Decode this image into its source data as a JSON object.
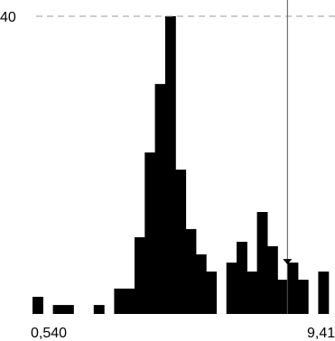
{
  "chart_data": {
    "type": "bar",
    "title": "",
    "xlabel": "",
    "ylabel": "",
    "ylim": [
      0,
      40
    ],
    "xlim": [
      0.54,
      9.41
    ],
    "grid": false,
    "reference_line": {
      "y": 40,
      "label": "40",
      "style": "dashed"
    },
    "cursor_line": {
      "x": 8.41
    },
    "x_tick_labels": [
      "0,540",
      "9,41"
    ],
    "bins": [
      {
        "x0": 0.54,
        "x1": 0.855,
        "value": 2.3
      },
      {
        "x0": 0.855,
        "x1": 1.17,
        "value": 0
      },
      {
        "x0": 1.17,
        "x1": 1.485,
        "value": 1.2
      },
      {
        "x0": 1.485,
        "x1": 1.8,
        "value": 1.2
      },
      {
        "x0": 1.8,
        "x1": 2.115,
        "value": 0
      },
      {
        "x0": 2.115,
        "x1": 2.43,
        "value": 0
      },
      {
        "x0": 2.43,
        "x1": 2.745,
        "value": 1.2
      },
      {
        "x0": 2.745,
        "x1": 3.06,
        "value": 0
      },
      {
        "x0": 3.06,
        "x1": 3.375,
        "value": 3.4
      },
      {
        "x0": 3.375,
        "x1": 3.69,
        "value": 3.4
      },
      {
        "x0": 3.69,
        "x1": 4.005,
        "value": 10.3
      },
      {
        "x0": 4.005,
        "x1": 4.32,
        "value": 21.7
      },
      {
        "x0": 4.32,
        "x1": 4.635,
        "value": 30.9
      },
      {
        "x0": 4.635,
        "x1": 4.95,
        "value": 40
      },
      {
        "x0": 4.95,
        "x1": 5.265,
        "value": 19.4
      },
      {
        "x0": 5.265,
        "x1": 5.58,
        "value": 11.4
      },
      {
        "x0": 5.58,
        "x1": 5.895,
        "value": 8
      },
      {
        "x0": 5.895,
        "x1": 6.21,
        "value": 5.7
      },
      {
        "x0": 6.21,
        "x1": 6.525,
        "value": 0
      },
      {
        "x0": 6.525,
        "x1": 6.84,
        "value": 6.9
      },
      {
        "x0": 6.84,
        "x1": 7.155,
        "value": 9.7
      },
      {
        "x0": 7.155,
        "x1": 7.47,
        "value": 5.7
      },
      {
        "x0": 7.47,
        "x1": 7.785,
        "value": 13.7
      },
      {
        "x0": 7.785,
        "x1": 8.1,
        "value": 9.1
      },
      {
        "x0": 8.1,
        "x1": 8.415,
        "value": 4.6
      },
      {
        "x0": 8.415,
        "x1": 8.73,
        "value": 6.9
      },
      {
        "x0": 8.73,
        "x1": 9.045,
        "value": 4.6
      },
      {
        "x0": 9.045,
        "x1": 9.36,
        "value": 0
      },
      {
        "x0": 9.36,
        "x1": 9.675,
        "value": 5.7
      }
    ]
  }
}
